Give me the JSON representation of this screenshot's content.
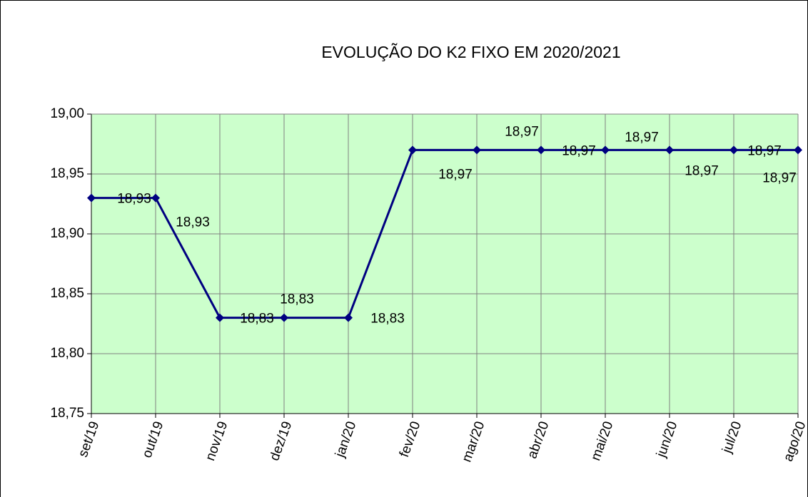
{
  "chart_data": {
    "type": "line",
    "title": "EVOLUÇÃO DO K2 FIXO EM  2020/2021",
    "categories": [
      "set/19",
      "out/19",
      "nov/19",
      "dez/19",
      "jan/20",
      "fev/20",
      "mar/20",
      "abr/20",
      "mai/20",
      "jun/20",
      "jul/20",
      "ago/20"
    ],
    "series": [
      {
        "name": "K2 FIXO",
        "color": "#000080",
        "values": [
          18.93,
          18.93,
          18.83,
          18.83,
          18.83,
          18.97,
          18.97,
          18.97,
          18.97,
          18.97,
          18.97,
          18.97
        ],
        "value_labels": [
          "18,93",
          "18,93",
          "18,83",
          "18,83",
          "18,83",
          "18,97",
          "18,97",
          "18,97",
          "18,97",
          "18,97",
          "18,97",
          "18,97"
        ]
      }
    ],
    "ylim": [
      18.75,
      19.0
    ],
    "yticks": [
      {
        "value": 18.75,
        "label": "18,75"
      },
      {
        "value": 18.8,
        "label": "18,80"
      },
      {
        "value": 18.85,
        "label": "18,85"
      },
      {
        "value": 18.9,
        "label": "18,90"
      },
      {
        "value": 18.95,
        "label": "18,95"
      },
      {
        "value": 19.0,
        "label": "19,00"
      }
    ],
    "grid": true,
    "plot_background": "#ccffcc"
  }
}
